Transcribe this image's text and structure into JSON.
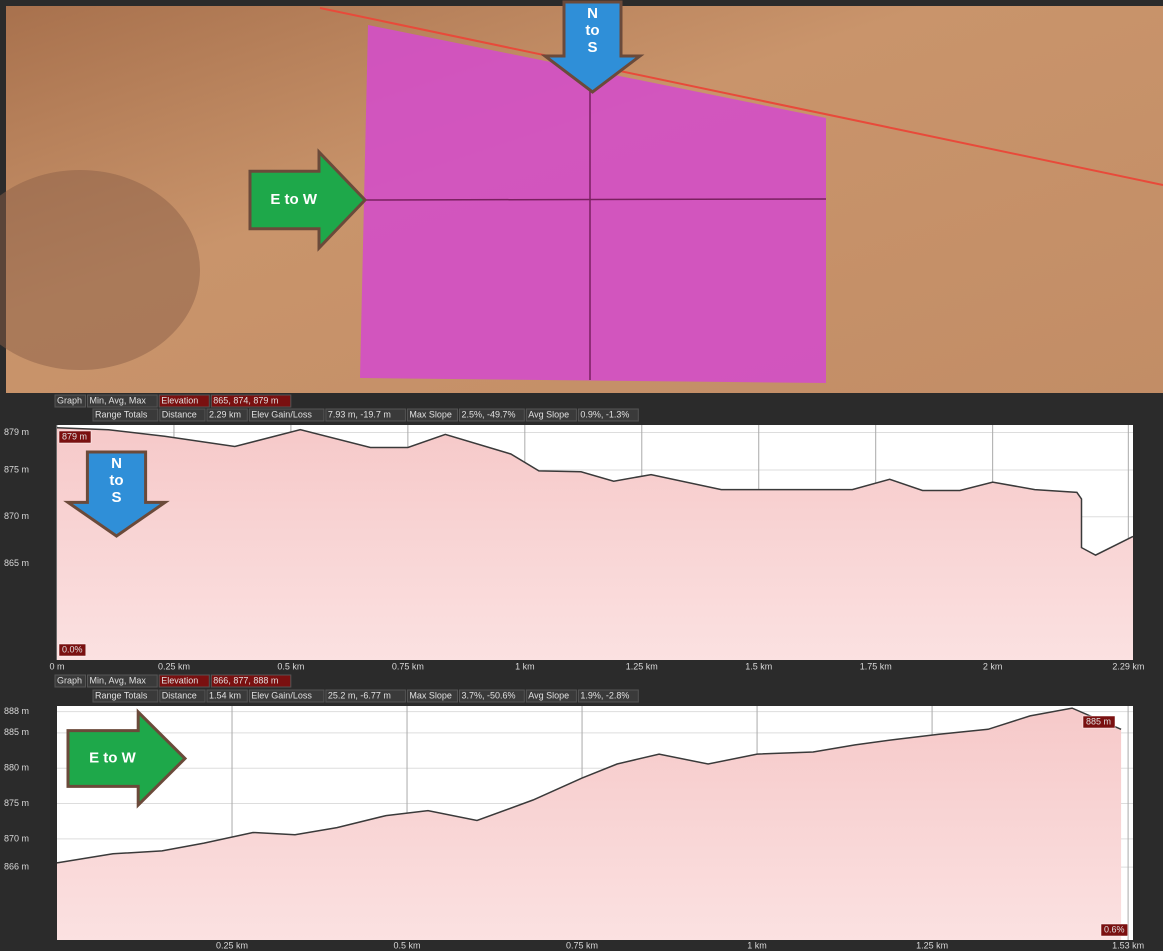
{
  "map": {
    "arrows": [
      [
        "N",
        "to",
        "S"
      ],
      [
        "E to W"
      ]
    ]
  },
  "chart_data": [
    {
      "type": "line",
      "summary": [
        [
          "Graph",
          "Min, Avg, Max",
          "Elevation",
          "865, 874, 879 m"
        ],
        [
          "Range Totals",
          "Distance",
          "2.29 km",
          "Elev Gain/Loss",
          "7.93 m, -19.7 m",
          "Max Slope",
          "2.5%, -49.7%",
          "Avg Slope",
          "0.9%, -1.3%"
        ]
      ],
      "arrow_label": [
        "N",
        "to",
        "S"
      ],
      "marker_labels": [
        "879 m",
        "0.0%"
      ],
      "x": [
        0,
        0.11,
        0.23,
        0.38,
        0.52,
        0.67,
        0.75,
        0.83,
        0.97,
        1.03,
        1.12,
        1.19,
        1.27,
        1.42,
        1.52,
        1.7,
        1.78,
        1.85,
        1.93,
        2.0,
        2.09,
        2.18,
        2.19,
        2.19,
        2.22,
        2.3
      ],
      "values": [
        879.5,
        879.3,
        878.6,
        877.5,
        879.3,
        877.4,
        877.4,
        878.8,
        876.7,
        874.9,
        874.8,
        873.8,
        874.5,
        872.9,
        872.9,
        872.9,
        874,
        872.8,
        872.8,
        873.7,
        872.9,
        872.6,
        871.9,
        866.7,
        865.9,
        867.9
      ],
      "color": "#3a3a3a",
      "xlim": [
        0,
        2.3
      ],
      "ylim": [
        854.7,
        879.8
      ],
      "xticks": [
        {
          "value": 0,
          "label": "0 m"
        },
        {
          "value": 0.25,
          "label": "0.25 km"
        },
        {
          "value": 0.5,
          "label": "0.5 km"
        },
        {
          "value": 0.75,
          "label": "0.75 km"
        },
        {
          "value": 1,
          "label": "1 km"
        },
        {
          "value": 1.25,
          "label": "1.25 km"
        },
        {
          "value": 1.5,
          "label": "1.5 km"
        },
        {
          "value": 1.75,
          "label": "1.75 km"
        },
        {
          "value": 2,
          "label": "2 km"
        },
        {
          "value": 2.29,
          "label": "2.29 km"
        }
      ],
      "yticks": [
        {
          "value": 865,
          "label": "865 m"
        },
        {
          "value": 870,
          "label": "870 m"
        },
        {
          "value": 875,
          "label": "875 m"
        },
        {
          "value": 879,
          "label": "879 m"
        }
      ],
      "grid": true
    },
    {
      "type": "line",
      "summary": [
        [
          "Graph",
          "Min, Avg, Max",
          "Elevation",
          "866, 877, 888 m"
        ],
        [
          "Range Totals",
          "Distance",
          "1.54 km",
          "Elev Gain/Loss",
          "25.2 m, -6.77 m",
          "Max Slope",
          "3.7%, -50.6%",
          "Avg Slope",
          "1.9%, -2.8%"
        ]
      ],
      "arrow_label": [
        "E to W"
      ],
      "marker_labels": [
        "885 m",
        "0.6%"
      ],
      "x": [
        0,
        0.08,
        0.15,
        0.21,
        0.28,
        0.34,
        0.4,
        0.47,
        0.53,
        0.6,
        0.68,
        0.75,
        0.8,
        0.86,
        0.93,
        1.0,
        1.08,
        1.14,
        1.2,
        1.26,
        1.33,
        1.39,
        1.45,
        1.52
      ],
      "values": [
        866.6,
        867.9,
        868.3,
        869.4,
        870.9,
        870.6,
        871.6,
        873.3,
        874,
        872.6,
        875.5,
        878.6,
        880.6,
        882,
        880.6,
        882,
        882.3,
        883.3,
        884.1,
        884.8,
        885.5,
        887.4,
        888.5,
        885.5
      ],
      "color": "#3a3a3a",
      "xlim": [
        0,
        1.537
      ],
      "ylim": [
        855.7,
        888.8
      ],
      "xticks": [
        {
          "value": 0.25,
          "label": "0.25 km"
        },
        {
          "value": 0.5,
          "label": "0.5 km"
        },
        {
          "value": 0.75,
          "label": "0.75 km"
        },
        {
          "value": 1,
          "label": "1 km"
        },
        {
          "value": 1.25,
          "label": "1.25 km"
        },
        {
          "value": 1.53,
          "label": "1.53 km"
        }
      ],
      "yticks": [
        {
          "value": 866,
          "label": "866 m"
        },
        {
          "value": 870,
          "label": "870 m"
        },
        {
          "value": 875,
          "label": "875 m"
        },
        {
          "value": 880,
          "label": "880 m"
        },
        {
          "value": 885,
          "label": "885 m"
        },
        {
          "value": 888,
          "label": "888 m"
        }
      ],
      "grid": true
    }
  ]
}
